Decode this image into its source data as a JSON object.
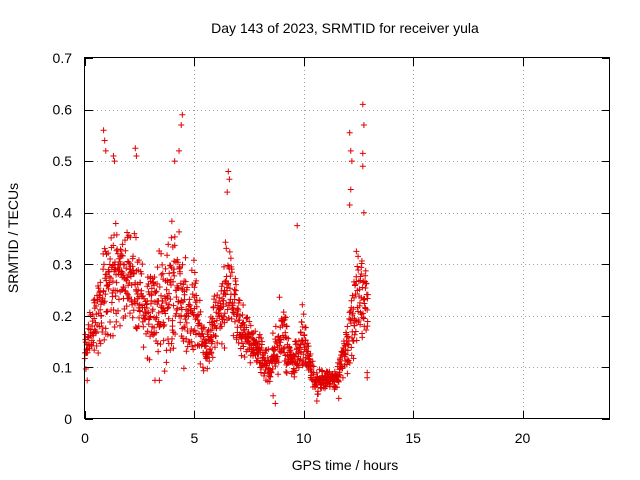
{
  "chart_data": {
    "type": "scatter",
    "title": "Day 143 of 2023, SRMTID for receiver yula",
    "xlabel": "GPS time / hours",
    "ylabel": "SRMTID / TECUs",
    "xlim": [
      0,
      24
    ],
    "ylim": [
      0,
      0.7
    ],
    "x_ticks": [
      0,
      5,
      10,
      15,
      20
    ],
    "x_tick_labels": [
      "0",
      "5",
      "10",
      "15",
      "20"
    ],
    "y_ticks": [
      0,
      0.1,
      0.2,
      0.3,
      0.4,
      0.5,
      0.6,
      0.7
    ],
    "y_tick_labels": [
      "0",
      "0.1",
      "0.2",
      "0.3",
      "0.4",
      "0.5",
      "0.6",
      "0.7"
    ],
    "grid": true,
    "marker": "plus",
    "color": "#e00000",
    "sample_step_hours": 0.025,
    "time_start_hours": 0.0,
    "time_end_hours": 12.95,
    "envelope": [
      {
        "t": 0.0,
        "base": 0.13,
        "spread": 0.05
      },
      {
        "t": 0.5,
        "base": 0.2,
        "spread": 0.1
      },
      {
        "t": 1.0,
        "base": 0.27,
        "spread": 0.16
      },
      {
        "t": 2.0,
        "base": 0.28,
        "spread": 0.14
      },
      {
        "t": 3.0,
        "base": 0.2,
        "spread": 0.12
      },
      {
        "t": 4.0,
        "base": 0.24,
        "spread": 0.18
      },
      {
        "t": 5.0,
        "base": 0.2,
        "spread": 0.12
      },
      {
        "t": 5.5,
        "base": 0.13,
        "spread": 0.05
      },
      {
        "t": 6.5,
        "base": 0.25,
        "spread": 0.14
      },
      {
        "t": 7.5,
        "base": 0.15,
        "spread": 0.06
      },
      {
        "t": 8.5,
        "base": 0.1,
        "spread": 0.05
      },
      {
        "t": 9.0,
        "base": 0.18,
        "spread": 0.1
      },
      {
        "t": 9.5,
        "base": 0.1,
        "spread": 0.04
      },
      {
        "t": 10.0,
        "base": 0.15,
        "spread": 0.1
      },
      {
        "t": 10.5,
        "base": 0.07,
        "spread": 0.03
      },
      {
        "t": 11.5,
        "base": 0.08,
        "spread": 0.03
      },
      {
        "t": 12.0,
        "base": 0.14,
        "spread": 0.07
      },
      {
        "t": 12.5,
        "base": 0.24,
        "spread": 0.14
      },
      {
        "t": 12.95,
        "base": 0.22,
        "spread": 0.08
      }
    ],
    "highlights": [
      {
        "x": 0.85,
        "y": 0.56
      },
      {
        "x": 0.9,
        "y": 0.54
      },
      {
        "x": 0.95,
        "y": 0.52
      },
      {
        "x": 1.3,
        "y": 0.51
      },
      {
        "x": 1.35,
        "y": 0.5
      },
      {
        "x": 2.3,
        "y": 0.525
      },
      {
        "x": 2.35,
        "y": 0.51
      },
      {
        "x": 4.45,
        "y": 0.59
      },
      {
        "x": 4.4,
        "y": 0.57
      },
      {
        "x": 4.3,
        "y": 0.52
      },
      {
        "x": 4.1,
        "y": 0.5
      },
      {
        "x": 6.55,
        "y": 0.48
      },
      {
        "x": 6.6,
        "y": 0.465
      },
      {
        "x": 6.5,
        "y": 0.44
      },
      {
        "x": 12.7,
        "y": 0.61
      },
      {
        "x": 12.75,
        "y": 0.57
      },
      {
        "x": 12.7,
        "y": 0.515
      },
      {
        "x": 12.7,
        "y": 0.49
      },
      {
        "x": 12.1,
        "y": 0.555
      },
      {
        "x": 12.15,
        "y": 0.52
      },
      {
        "x": 12.2,
        "y": 0.5
      },
      {
        "x": 12.15,
        "y": 0.445
      },
      {
        "x": 12.1,
        "y": 0.415
      },
      {
        "x": 12.75,
        "y": 0.4
      },
      {
        "x": 9.7,
        "y": 0.375
      },
      {
        "x": 8.7,
        "y": 0.03
      },
      {
        "x": 8.6,
        "y": 0.045
      },
      {
        "x": 3.4,
        "y": 0.075
      },
      {
        "x": 3.2,
        "y": 0.075
      },
      {
        "x": 0.1,
        "y": 0.075
      },
      {
        "x": 12.9,
        "y": 0.08
      },
      {
        "x": 12.9,
        "y": 0.09
      },
      {
        "x": 10.6,
        "y": 0.035
      },
      {
        "x": 11.6,
        "y": 0.04
      }
    ]
  }
}
